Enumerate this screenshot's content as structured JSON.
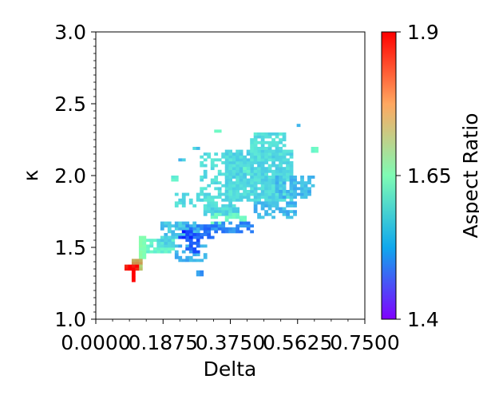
{
  "chart_data": {
    "type": "heatmap",
    "title": "",
    "xlabel": "Delta",
    "ylabel": "κ",
    "xlim": [
      0.0,
      0.75
    ],
    "ylim": [
      1.0,
      3.0
    ],
    "x_tick_labels": [
      "0.0000",
      "0.1875",
      "0.3750",
      "0.5625",
      "0.7500"
    ],
    "x_ticks": [
      0.0,
      0.1875,
      0.375,
      0.5625,
      0.75
    ],
    "y_tick_labels": [
      "1.0",
      "1.5",
      "2.0",
      "2.5",
      "3.0"
    ],
    "y_ticks": [
      1.0,
      1.5,
      2.0,
      2.5,
      3.0
    ],
    "grid": false,
    "colorbar": {
      "label": "Aspect Ratio",
      "min": 1.4,
      "max": 1.9,
      "tick_labels": [
        "1.4",
        "1.65",
        "1.9"
      ],
      "ticks": [
        1.4,
        1.65,
        1.9
      ],
      "colormap": "rainbow"
    },
    "cell_width": 0.01,
    "cell_height": 0.02,
    "clusters": [
      {
        "x_range": [
          0.36,
          0.55
        ],
        "y_range": [
          1.82,
          2.18
        ],
        "value": 1.56,
        "density": 0.9
      },
      {
        "x_range": [
          0.43,
          0.53
        ],
        "y_range": [
          2.1,
          2.3
        ],
        "value": 1.57,
        "density": 0.8
      },
      {
        "x_range": [
          0.29,
          0.38
        ],
        "y_range": [
          1.8,
          2.16
        ],
        "value": 1.57,
        "density": 0.5
      },
      {
        "x_range": [
          0.3,
          0.4
        ],
        "y_range": [
          1.72,
          1.8
        ],
        "value": 1.56,
        "density": 0.9
      },
      {
        "x_range": [
          0.44,
          0.56
        ],
        "y_range": [
          1.7,
          1.82
        ],
        "value": 1.53,
        "density": 0.6
      },
      {
        "x_range": [
          0.5,
          0.61
        ],
        "y_range": [
          1.84,
          2.0
        ],
        "value": 1.53,
        "density": 0.7
      },
      {
        "x_range": [
          0.22,
          0.3
        ],
        "y_range": [
          1.78,
          1.88
        ],
        "value": 1.56,
        "density": 0.5
      },
      {
        "x_range": [
          0.18,
          0.3
        ],
        "y_range": [
          1.56,
          1.68
        ],
        "value": 1.54,
        "density": 0.5
      },
      {
        "x_range": [
          0.32,
          0.42
        ],
        "y_range": [
          1.66,
          1.74
        ],
        "value": 1.62,
        "density": 0.6
      },
      {
        "x_range": [
          0.32,
          0.44
        ],
        "y_range": [
          1.6,
          1.68
        ],
        "value": 1.49,
        "density": 0.7
      },
      {
        "x_range": [
          0.25,
          0.33
        ],
        "y_range": [
          1.56,
          1.66
        ],
        "value": 1.48,
        "density": 0.6
      },
      {
        "x_range": [
          0.14,
          0.22
        ],
        "y_range": [
          1.46,
          1.56
        ],
        "value": 1.6,
        "density": 0.8
      },
      {
        "x_range": [
          0.17,
          0.22
        ],
        "y_range": [
          1.5,
          1.58
        ],
        "value": 1.56,
        "density": 0.8
      },
      {
        "x_range": [
          0.22,
          0.31
        ],
        "y_range": [
          1.4,
          1.52
        ],
        "value": 1.52,
        "density": 0.5
      },
      {
        "x_range": [
          0.25,
          0.29
        ],
        "y_range": [
          1.46,
          1.6
        ],
        "value": 1.46,
        "density": 0.5
      },
      {
        "x_range": [
          0.23,
          0.27
        ],
        "y_range": [
          1.56,
          1.62
        ],
        "value": 1.43,
        "density": 0.6
      },
      {
        "x_range": [
          0.12,
          0.14
        ],
        "y_range": [
          1.42,
          1.58
        ],
        "value": 1.66,
        "density": 1.0
      },
      {
        "x_range": [
          0.1,
          0.13
        ],
        "y_range": [
          1.38,
          1.42
        ],
        "value": 1.8,
        "density": 1.0
      },
      {
        "x_range": [
          0.11,
          0.13
        ],
        "y_range": [
          1.34,
          1.38
        ],
        "value": 1.76,
        "density": 1.0
      },
      {
        "x_range": [
          0.08,
          0.12
        ],
        "y_range": [
          1.34,
          1.38
        ],
        "value": 1.89,
        "density": 1.0
      },
      {
        "x_range": [
          0.1,
          0.11
        ],
        "y_range": [
          1.26,
          1.34
        ],
        "value": 1.9,
        "density": 1.0
      },
      {
        "x_range": [
          0.6,
          0.62
        ],
        "y_range": [
          2.16,
          2.2
        ],
        "value": 1.62,
        "density": 1.0
      },
      {
        "x_range": [
          0.56,
          0.57
        ],
        "y_range": [
          2.34,
          2.36
        ],
        "value": 1.54,
        "density": 1.0
      },
      {
        "x_range": [
          0.41,
          0.43
        ],
        "y_range": [
          2.02,
          2.06
        ],
        "value": 1.6,
        "density": 1.0
      },
      {
        "x_range": [
          0.33,
          0.35
        ],
        "y_range": [
          2.3,
          2.32
        ],
        "value": 1.62,
        "density": 1.0
      },
      {
        "x_range": [
          0.23,
          0.25
        ],
        "y_range": [
          2.1,
          2.12
        ],
        "value": 1.54,
        "density": 1.0
      },
      {
        "x_range": [
          0.27,
          0.29
        ],
        "y_range": [
          2.18,
          2.2
        ],
        "value": 1.55,
        "density": 1.0
      },
      {
        "x_range": [
          0.21,
          0.23
        ],
        "y_range": [
          1.96,
          2.0
        ],
        "value": 1.6,
        "density": 1.0
      },
      {
        "x_range": [
          0.28,
          0.3
        ],
        "y_range": [
          1.3,
          1.34
        ],
        "value": 1.5,
        "density": 1.0
      }
    ]
  }
}
